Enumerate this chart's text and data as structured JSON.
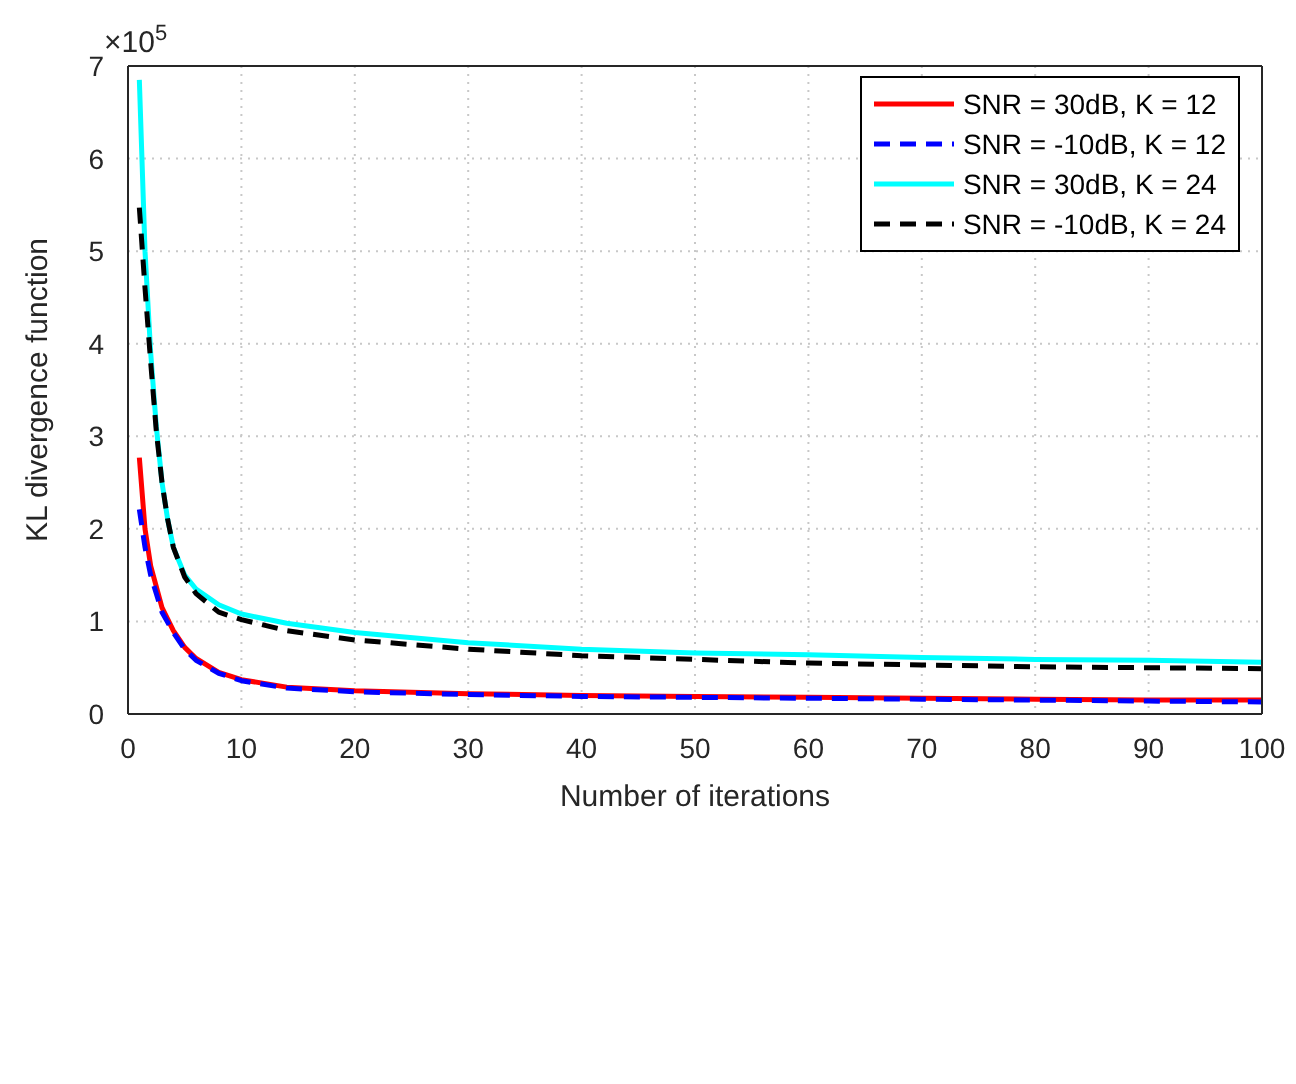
{
  "chart_data": {
    "type": "line",
    "xlabel": "Number of iterations",
    "ylabel": "KL divergence function",
    "annotations": [
      "×10$^{5}$"
    ],
    "xlim": [
      0,
      100
    ],
    "xticks": [
      0,
      10,
      20,
      30,
      40,
      50,
      60,
      70,
      80,
      90,
      100
    ],
    "ylim": [
      0,
      7
    ],
    "yticks": [
      0,
      1,
      2,
      3,
      4,
      5,
      6,
      7
    ],
    "grid": true,
    "legend": "top right",
    "marker": "none",
    "series": [
      {
        "name": "SNR = 30dB, K = 12",
        "color": "#ff0000",
        "line_style": "solid",
        "x": [
          1,
          1.5,
          2,
          3,
          4,
          5,
          6,
          8,
          10,
          14,
          20,
          30,
          40,
          50,
          60,
          70,
          80,
          90,
          100
        ],
        "values": [
          2.77,
          2.0,
          1.6,
          1.15,
          0.9,
          0.72,
          0.6,
          0.45,
          0.37,
          0.29,
          0.25,
          0.22,
          0.2,
          0.19,
          0.18,
          0.17,
          0.16,
          0.15,
          0.15
        ]
      },
      {
        "name": "SNR = -10dB, K = 12",
        "color": "#0000ff",
        "line_style": "dashed",
        "x": [
          1,
          1.5,
          2,
          3,
          4,
          5,
          6,
          8,
          10,
          14,
          20,
          30,
          40,
          50,
          60,
          70,
          80,
          90,
          100
        ],
        "values": [
          2.21,
          1.8,
          1.5,
          1.1,
          0.88,
          0.7,
          0.58,
          0.44,
          0.36,
          0.28,
          0.24,
          0.21,
          0.19,
          0.18,
          0.17,
          0.16,
          0.15,
          0.14,
          0.13
        ]
      },
      {
        "name": "SNR = 30dB, K = 24",
        "color": "#00ffff",
        "line_style": "solid",
        "x": [
          1,
          1.5,
          2,
          2.5,
          3,
          3.5,
          4,
          5,
          6,
          8,
          10,
          14,
          20,
          30,
          40,
          50,
          60,
          70,
          80,
          90,
          100
        ],
        "values": [
          6.85,
          5.0,
          3.9,
          3.1,
          2.5,
          2.1,
          1.8,
          1.5,
          1.35,
          1.18,
          1.08,
          0.98,
          0.88,
          0.77,
          0.7,
          0.66,
          0.64,
          0.61,
          0.59,
          0.58,
          0.56
        ]
      },
      {
        "name": "SNR = -10dB, K = 24",
        "color": "#000000",
        "line_style": "dashed",
        "x": [
          1,
          1.5,
          2,
          2.5,
          3,
          3.5,
          4,
          5,
          6,
          8,
          10,
          14,
          20,
          30,
          40,
          50,
          60,
          70,
          80,
          90,
          100
        ],
        "values": [
          5.47,
          4.6,
          3.8,
          3.05,
          2.5,
          2.1,
          1.8,
          1.48,
          1.3,
          1.1,
          1.02,
          0.9,
          0.8,
          0.7,
          0.63,
          0.59,
          0.55,
          0.53,
          0.51,
          0.5,
          0.49
        ]
      }
    ]
  }
}
